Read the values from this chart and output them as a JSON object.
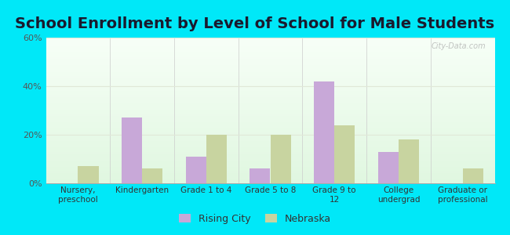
{
  "title": "School Enrollment by Level of School for Male Students",
  "categories": [
    "Nursery,\npreschool",
    "Kindergarten",
    "Grade 1 to 4",
    "Grade 5 to 8",
    "Grade 9 to\n12",
    "College\nundergrad",
    "Graduate or\nprofessional"
  ],
  "rising_city": [
    0,
    27,
    11,
    6,
    42,
    13,
    0
  ],
  "nebraska": [
    7,
    6,
    20,
    20,
    24,
    18,
    6
  ],
  "rising_city_color": "#c8a8d8",
  "nebraska_color": "#c8d4a0",
  "ylim": [
    0,
    60
  ],
  "yticks": [
    0,
    20,
    40,
    60
  ],
  "ytick_labels": [
    "0%",
    "20%",
    "40%",
    "60%"
  ],
  "background_color": "#00e8f8",
  "title_fontsize": 14,
  "legend_labels": [
    "Rising City",
    "Nebraska"
  ],
  "watermark": "City-Data.com"
}
